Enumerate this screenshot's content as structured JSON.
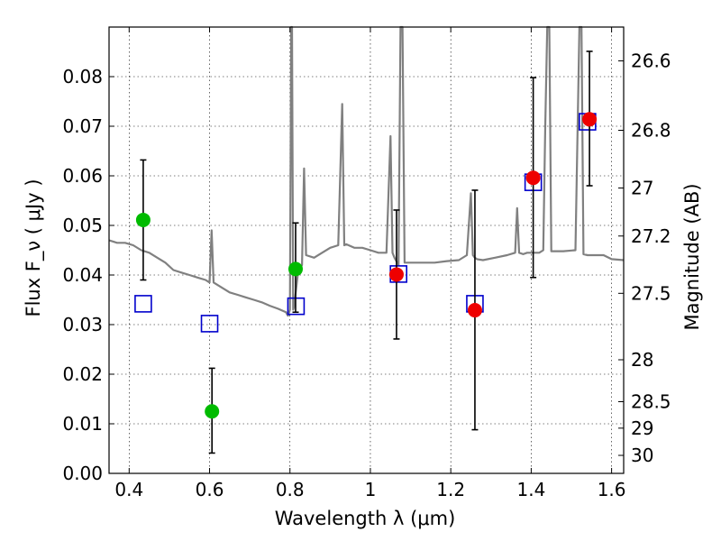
{
  "chart_data": {
    "type": "scatter",
    "xlabel": "Wavelength  λ (μm)",
    "ylabel": "Flux  F_ν  ( μJy )",
    "y2label": "Magnitude (AB)",
    "xlim": [
      0.35,
      1.63
    ],
    "ylim": [
      0.0,
      0.09
    ],
    "x_ticks": [
      "0.4",
      "0.6",
      "0.8",
      "1",
      "1.2",
      "1.4",
      "1.6"
    ],
    "y_ticks": [
      "0.00",
      "0.01",
      "0.02",
      "0.03",
      "0.04",
      "0.05",
      "0.06",
      "0.07",
      "0.08"
    ],
    "y2_ticks": [
      "26.6",
      "26.8",
      "27",
      "27.2",
      "27.5",
      "28",
      "28.5",
      "29",
      "30"
    ],
    "grid": true,
    "colors": {
      "optical_points": "#00bb00",
      "nir_points": "#ee0000",
      "model_boxes": "#0000cc",
      "spectrum": "#808080",
      "errorbars": "#000000"
    },
    "series": [
      {
        "marker": "circle-green",
        "x": [
          0.435,
          0.606,
          0.814
        ],
        "y": [
          0.0511,
          0.0125,
          0.0412
        ],
        "err_low": [
          0.0121,
          0.0084,
          0.0087
        ],
        "err_high": [
          0.0121,
          0.0087,
          0.0093
        ]
      },
      {
        "marker": "circle-red",
        "x": [
          1.065,
          1.26,
          1.405,
          1.545
        ],
        "y": [
          0.0401,
          0.0329,
          0.0596,
          0.0714
        ],
        "err_low": [
          0.013,
          0.0241,
          0.0201,
          0.0134
        ],
        "err_high": [
          0.013,
          0.0242,
          0.0202,
          0.0137
        ]
      },
      {
        "marker": "square-blue-open",
        "x": [
          0.435,
          0.6,
          0.815,
          1.07,
          1.26,
          1.405,
          1.54
        ],
        "y": [
          0.0342,
          0.0302,
          0.0337,
          0.0402,
          0.0342,
          0.0587,
          0.0709
        ]
      }
    ],
    "spectrum": {
      "x": [
        0.35,
        0.37,
        0.39,
        0.41,
        0.43,
        0.45,
        0.47,
        0.49,
        0.51,
        0.53,
        0.55,
        0.57,
        0.59,
        0.6,
        0.605,
        0.61,
        0.63,
        0.65,
        0.67,
        0.69,
        0.71,
        0.73,
        0.75,
        0.77,
        0.79,
        0.795,
        0.8,
        0.803,
        0.805,
        0.808,
        0.81,
        0.82,
        0.83,
        0.835,
        0.84,
        0.86,
        0.88,
        0.9,
        0.92,
        0.93,
        0.935,
        0.94,
        0.96,
        0.98,
        1.0,
        1.02,
        1.04,
        1.05,
        1.055,
        1.06,
        1.07,
        1.075,
        1.08,
        1.085,
        1.1,
        1.13,
        1.16,
        1.19,
        1.22,
        1.24,
        1.25,
        1.255,
        1.26,
        1.265,
        1.28,
        1.31,
        1.34,
        1.36,
        1.365,
        1.37,
        1.38,
        1.39,
        1.4,
        1.42,
        1.43,
        1.435,
        1.44,
        1.445,
        1.45,
        1.48,
        1.51,
        1.52,
        1.525,
        1.53,
        1.54,
        1.545,
        1.55,
        1.58,
        1.6,
        1.63
      ],
      "y": [
        0.047,
        0.0465,
        0.0465,
        0.046,
        0.045,
        0.0445,
        0.0435,
        0.0425,
        0.041,
        0.0405,
        0.04,
        0.0395,
        0.039,
        0.0385,
        0.049,
        0.0385,
        0.0375,
        0.0365,
        0.036,
        0.0355,
        0.035,
        0.0345,
        0.0338,
        0.0332,
        0.0325,
        0.0318,
        0.033,
        0.09,
        0.09,
        0.033,
        0.0335,
        0.0405,
        0.042,
        0.0615,
        0.044,
        0.0435,
        0.0445,
        0.0455,
        0.046,
        0.0745,
        0.046,
        0.0462,
        0.0455,
        0.0455,
        0.045,
        0.0445,
        0.0445,
        0.068,
        0.0445,
        0.0435,
        0.042,
        0.09,
        0.09,
        0.0425,
        0.0425,
        0.0425,
        0.0425,
        0.0428,
        0.043,
        0.044,
        0.0565,
        0.044,
        0.0435,
        0.0432,
        0.043,
        0.0435,
        0.044,
        0.0445,
        0.0535,
        0.0445,
        0.0442,
        0.0445,
        0.0445,
        0.0445,
        0.045,
        0.07,
        0.09,
        0.09,
        0.0448,
        0.0448,
        0.045,
        0.09,
        0.09,
        0.0442,
        0.044,
        0.044,
        0.044,
        0.044,
        0.0432,
        0.043
      ]
    }
  }
}
